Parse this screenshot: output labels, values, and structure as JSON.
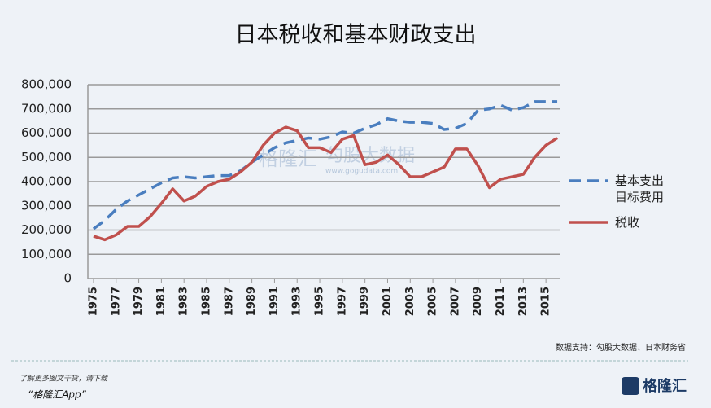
{
  "chart_data": {
    "type": "line",
    "title": "日本税收和基本财政支出",
    "x": [
      1975,
      1976,
      1977,
      1978,
      1979,
      1980,
      1981,
      1982,
      1983,
      1984,
      1985,
      1986,
      1987,
      1988,
      1989,
      1990,
      1991,
      1992,
      1993,
      1994,
      1995,
      1996,
      1997,
      1998,
      1999,
      2000,
      2001,
      2002,
      2003,
      2004,
      2005,
      2006,
      2007,
      2008,
      2009,
      2010,
      2011,
      2012,
      2013,
      2014,
      2015,
      2016
    ],
    "xlim": [
      1974.5,
      2016.5
    ],
    "xticks": [
      1975,
      1977,
      1979,
      1981,
      1983,
      1985,
      1987,
      1989,
      1991,
      1993,
      1995,
      1997,
      1999,
      2001,
      2003,
      2005,
      2007,
      2009,
      2011,
      2013,
      2015
    ],
    "ylim": [
      0,
      800000
    ],
    "yticks": [
      0,
      {
        "value": 100000,
        "label": "100,000"
      },
      {
        "value": 200000,
        "label": "200,000"
      },
      {
        "value": 300000,
        "label": "300,000"
      },
      {
        "value": 400000,
        "label": "400,000"
      },
      {
        "value": 500000,
        "label": "500,000"
      },
      {
        "value": 600000,
        "label": "600,000"
      },
      {
        "value": 700000,
        "label": "700,000"
      },
      {
        "value": 800000,
        "label": "800,000"
      }
    ],
    "grid": true,
    "series": [
      {
        "name": "基本支出目标费用",
        "color": "#4a7ebf",
        "dashed": true,
        "values": [
          205000,
          240000,
          285000,
          320000,
          345000,
          370000,
          395000,
          415000,
          420000,
          415000,
          420000,
          425000,
          425000,
          445000,
          480000,
          510000,
          540000,
          560000,
          570000,
          580000,
          575000,
          585000,
          605000,
          600000,
          620000,
          635000,
          660000,
          650000,
          645000,
          645000,
          640000,
          615000,
          620000,
          640000,
          695000,
          700000,
          715000,
          695000,
          705000,
          730000,
          730000,
          730000
        ]
      },
      {
        "name": "税收",
        "color": "#c0504d",
        "dashed": false,
        "values": [
          175000,
          160000,
          180000,
          215000,
          215000,
          255000,
          310000,
          370000,
          320000,
          340000,
          380000,
          400000,
          410000,
          440000,
          480000,
          550000,
          600000,
          625000,
          610000,
          540000,
          540000,
          520000,
          575000,
          590000,
          470000,
          480000,
          510000,
          470000,
          420000,
          420000,
          440000,
          460000,
          535000,
          535000,
          465000,
          375000,
          410000,
          420000,
          430000,
          500000,
          550000,
          580000
        ]
      }
    ],
    "source": "数据支持：勾股大数据、日本财务省"
  },
  "footer": {
    "prompt": "了解更多图文干货，请下载",
    "app": "“格隆汇App”",
    "logo": "格隆汇"
  },
  "watermarks": [
    "格隆汇",
    "勾股大数据",
    "www.gogudata.com"
  ]
}
